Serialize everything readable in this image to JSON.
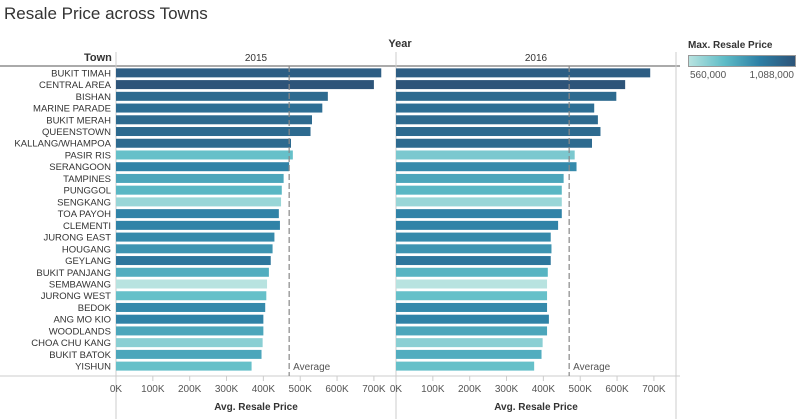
{
  "title": "Resale Price across Towns",
  "column_header": "Year",
  "row_header": "Town",
  "legend": {
    "title": "Max. Resale Price",
    "min_label": "560,000",
    "max_label": "1,088,000",
    "min_value": 560000,
    "max_value": 1088000,
    "colors": [
      "#b8e3e0",
      "#5ebcc7",
      "#2d7fa5",
      "#2d5479"
    ]
  },
  "chart_data": {
    "type": "bar",
    "orientation": "horizontal",
    "xlabel": "Avg. Resale Price",
    "ylabel": "Town",
    "xlim": [
      0,
      760000
    ],
    "ticks": [
      0,
      100000,
      200000,
      300000,
      400000,
      500000,
      600000,
      700000
    ],
    "tick_labels": [
      "0K",
      "100K",
      "200K",
      "300K",
      "400K",
      "500K",
      "600K",
      "700K"
    ],
    "average_label": "Average",
    "categories": [
      "BUKIT TIMAH",
      "CENTRAL AREA",
      "BISHAN",
      "MARINE PARADE",
      "BUKIT MERAH",
      "QUEENSTOWN",
      "KALLANG/WHAMPOA",
      "PASIR RIS",
      "SERANGOON",
      "TAMPINES",
      "PUNGGOL",
      "SENGKANG",
      "TOA PAYOH",
      "CLEMENTI",
      "JURONG EAST",
      "HOUGANG",
      "GEYLANG",
      "BUKIT PANJANG",
      "SEMBAWANG",
      "JURONG WEST",
      "BEDOK",
      "ANG MO KIO",
      "WOODLANDS",
      "CHOA CHU KANG",
      "BUKIT BATOK",
      "YISHUN"
    ],
    "series": [
      {
        "name": "2015",
        "average": 470000,
        "values": [
          720000,
          700000,
          575000,
          560000,
          532000,
          528000,
          475000,
          480000,
          470000,
          455000,
          450000,
          448000,
          442000,
          445000,
          430000,
          425000,
          420000,
          415000,
          410000,
          408000,
          405000,
          400000,
          400000,
          398000,
          395000,
          368000
        ],
        "max_prices": [
          1050000,
          1088000,
          1000000,
          980000,
          1000000,
          1000000,
          1000000,
          720000,
          900000,
          800000,
          750000,
          620000,
          900000,
          900000,
          880000,
          850000,
          950000,
          780000,
          560000,
          720000,
          880000,
          900000,
          800000,
          650000,
          800000,
          720000
        ]
      },
      {
        "name": "2016",
        "average": 470000,
        "values": [
          690000,
          622000,
          598000,
          538000,
          548000,
          555000,
          532000,
          485000,
          490000,
          455000,
          450000,
          450000,
          450000,
          440000,
          420000,
          422000,
          420000,
          412000,
          410000,
          410000,
          410000,
          415000,
          410000,
          398000,
          395000,
          375000
        ],
        "max_prices": [
          1050000,
          1088000,
          1000000,
          980000,
          1000000,
          1000000,
          1000000,
          680000,
          880000,
          800000,
          750000,
          620000,
          900000,
          900000,
          880000,
          850000,
          950000,
          760000,
          560000,
          720000,
          880000,
          900000,
          800000,
          650000,
          780000,
          720000
        ]
      }
    ]
  }
}
